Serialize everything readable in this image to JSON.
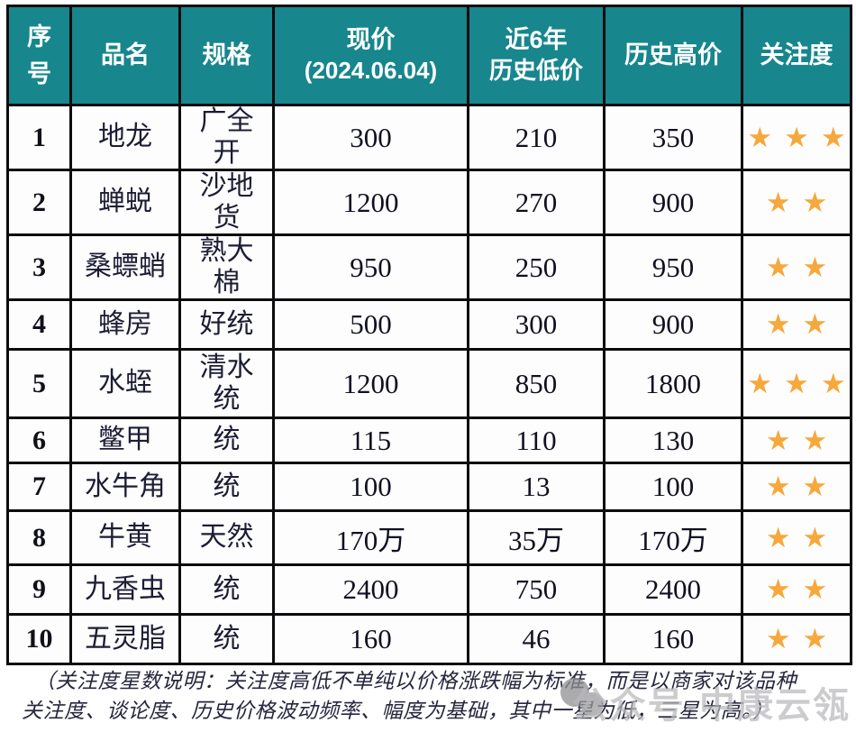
{
  "chart_data": {
    "type": "table",
    "title": "",
    "columns": [
      "序号",
      "品名",
      "规格",
      "现价 (2024.06.04)",
      "近6年 历史低价",
      "历史高价",
      "关注度"
    ],
    "rows": [
      [
        "1",
        "地龙",
        "广全开",
        "300",
        "210",
        "350",
        "★★★"
      ],
      [
        "2",
        "蝉蜕",
        "沙地货",
        "1200",
        "270",
        "900",
        "★★"
      ],
      [
        "3",
        "桑螵蛸",
        "熟大棉",
        "950",
        "250",
        "950",
        "★★"
      ],
      [
        "4",
        "蜂房",
        "好统",
        "500",
        "300",
        "900",
        "★★"
      ],
      [
        "5",
        "水蛭",
        "清水统",
        "1200",
        "850",
        "1800",
        "★★★"
      ],
      [
        "6",
        "鳖甲",
        "统",
        "115",
        "110",
        "130",
        "★★"
      ],
      [
        "7",
        "水牛角",
        "统",
        "100",
        "13",
        "100",
        "★★"
      ],
      [
        "8",
        "牛黄",
        "天然",
        "170万",
        "35万",
        "170万",
        "★★"
      ],
      [
        "9",
        "九香虫",
        "统",
        "2400",
        "750",
        "2400",
        "★★"
      ],
      [
        "10",
        "五灵脂",
        "统",
        "160",
        "46",
        "160",
        "★★"
      ]
    ]
  },
  "table": {
    "columns": [
      {
        "key": "num",
        "label": "序号",
        "sub": ""
      },
      {
        "key": "name",
        "label": "品名",
        "sub": ""
      },
      {
        "key": "spec",
        "label": "规格",
        "sub": ""
      },
      {
        "key": "current",
        "label": "现价",
        "sub": "(2024.06.04)"
      },
      {
        "key": "low",
        "label": "近6年",
        "sub": "历史低价"
      },
      {
        "key": "high",
        "label": "历史高价",
        "sub": ""
      },
      {
        "key": "stars",
        "label": "关注度",
        "sub": ""
      }
    ],
    "rows": [
      {
        "num": "1",
        "name": "地龙",
        "spec": "广全开",
        "current": "300",
        "low": "210",
        "high": "350",
        "stars": 3
      },
      {
        "num": "2",
        "name": "蝉蜕",
        "spec": "沙地货",
        "current": "1200",
        "low": "270",
        "high": "900",
        "stars": 2
      },
      {
        "num": "3",
        "name": "桑螵蛸",
        "spec": "熟大棉",
        "current": "950",
        "low": "250",
        "high": "950",
        "stars": 2
      },
      {
        "num": "4",
        "name": "蜂房",
        "spec": "好统",
        "current": "500",
        "low": "300",
        "high": "900",
        "stars": 2
      },
      {
        "num": "5",
        "name": "水蛭",
        "spec": "清水统",
        "current": "1200",
        "low": "850",
        "high": "1800",
        "stars": 3
      },
      {
        "num": "6",
        "name": "鳖甲",
        "spec": "统",
        "current": "115",
        "low": "110",
        "high": "130",
        "stars": 2
      },
      {
        "num": "7",
        "name": "水牛角",
        "spec": "统",
        "current": "100",
        "low": "13",
        "high": "100",
        "stars": 2
      },
      {
        "num": "8",
        "name": "牛黄",
        "spec": "天然",
        "current": "170万",
        "low": "35万",
        "high": "170万",
        "stars": 2
      },
      {
        "num": "9",
        "name": "九香虫",
        "spec": "统",
        "current": "2400",
        "low": "750",
        "high": "2400",
        "stars": 2
      },
      {
        "num": "10",
        "name": "五灵脂",
        "spec": "统",
        "current": "160",
        "low": "46",
        "high": "160",
        "stars": 2
      }
    ]
  },
  "footnote": {
    "line1": "（关注度星数说明：关注度高低不单纯以价格涨跌幅为标准，而是以商家对该品种",
    "line2": "关注度、谈论度、历史价格波动频率、幅度为基础，其中一星为低，三星为高。）"
  },
  "watermark": {
    "text": "公众号-中康云瓴"
  },
  "star_char": "★",
  "colors": {
    "header_bg": "#17868d",
    "header_text": "#ffffff",
    "star": "#f6a83c",
    "border": "#0c0c0e",
    "body_text": "#14142a",
    "footnote_text": "#26263f",
    "watermark": "#b9b9bc"
  }
}
